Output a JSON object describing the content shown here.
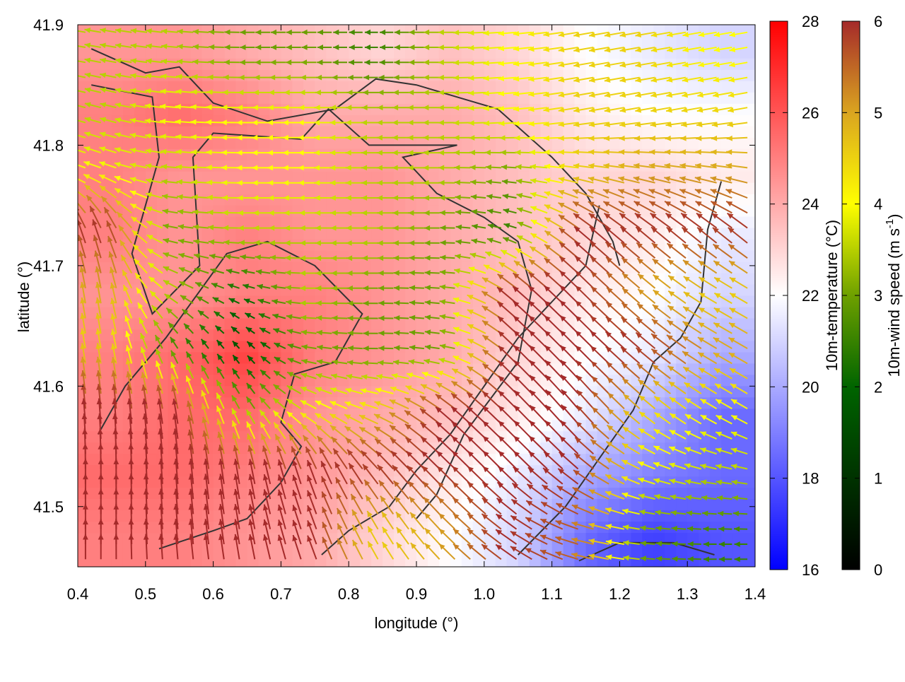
{
  "chart_data": {
    "type": "heatmap",
    "overlay": "vector",
    "xlabel": "longitude (°)",
    "ylabel": "latitude (°)",
    "xlim": [
      0.4,
      1.4
    ],
    "ylim": [
      41.45,
      41.9
    ],
    "xticks": [
      "0.4",
      "0.5",
      "0.6",
      "0.7",
      "0.8",
      "0.9",
      "1.0",
      "1.1",
      "1.2",
      "1.3",
      "1.4"
    ],
    "yticks": [
      "41.5",
      "41.6",
      "41.7",
      "41.8",
      "41.9"
    ],
    "grid_lon": [
      0.45,
      0.55,
      0.65,
      0.75,
      0.85,
      0.95,
      1.05,
      1.15,
      1.25,
      1.35
    ],
    "grid_lat": [
      41.875,
      41.825,
      41.775,
      41.725,
      41.675,
      41.625,
      41.575,
      41.525,
      41.475
    ],
    "temperature": [
      [
        24.5,
        24.5,
        24,
        23.5,
        23,
        23.5,
        23,
        22,
        21.5,
        21
      ],
      [
        25,
        25.5,
        25,
        24,
        24,
        24,
        23.5,
        22.5,
        22,
        22
      ],
      [
        25,
        24.5,
        24.5,
        24.5,
        24.5,
        24,
        23.5,
        23,
        23,
        22.5
      ],
      [
        25,
        24.5,
        25,
        24.5,
        24.5,
        24,
        23.5,
        23,
        22.5,
        21.5
      ],
      [
        24.5,
        24.5,
        25,
        25,
        24.5,
        24,
        23.5,
        22.5,
        22,
        21
      ],
      [
        25,
        25.5,
        26.5,
        25,
        24.5,
        24,
        23,
        22,
        21.5,
        20
      ],
      [
        25,
        25.5,
        25.5,
        24.5,
        24,
        23.5,
        22.5,
        21.5,
        20,
        18.5
      ],
      [
        25.5,
        25.5,
        25,
        24.5,
        23.5,
        22.5,
        21.5,
        20,
        19,
        18.5
      ],
      [
        25,
        25,
        24.5,
        24,
        23,
        22,
        21,
        18.5,
        17.5,
        18
      ]
    ],
    "wind_speed": [
      [
        3.5,
        3.5,
        3,
        3,
        2.5,
        3.5,
        4,
        4.5,
        4.5,
        4
      ],
      [
        3.5,
        4,
        4,
        4,
        3.5,
        3.5,
        4,
        4.5,
        4.5,
        4.5
      ],
      [
        4,
        3.5,
        4,
        4,
        3.5,
        3.5,
        3,
        4.5,
        5,
        5
      ],
      [
        6,
        3,
        3.5,
        3.5,
        3.5,
        3,
        2.5,
        6,
        6,
        6
      ],
      [
        5,
        3.5,
        2,
        3.5,
        3,
        3,
        6,
        6,
        5,
        4.5
      ],
      [
        4.5,
        2.5,
        1.5,
        3,
        3,
        3,
        6,
        6,
        6,
        5
      ],
      [
        6,
        6,
        3,
        4,
        4.5,
        6,
        6,
        6,
        4.5,
        4
      ],
      [
        6,
        6,
        6,
        6,
        6,
        6,
        6,
        6,
        4,
        3.5
      ],
      [
        6,
        6,
        6,
        6,
        4.5,
        5,
        6,
        5.5,
        3,
        2.5
      ]
    ],
    "wind_direction_deg": [
      [
        170,
        175,
        180,
        180,
        180,
        180,
        185,
        190,
        190,
        190
      ],
      [
        165,
        175,
        180,
        180,
        180,
        180,
        185,
        190,
        190,
        190
      ],
      [
        160,
        175,
        180,
        180,
        180,
        180,
        175,
        170,
        170,
        170
      ],
      [
        110,
        170,
        180,
        180,
        180,
        180,
        160,
        140,
        140,
        140
      ],
      [
        100,
        150,
        160,
        180,
        180,
        175,
        140,
        135,
        140,
        150
      ],
      [
        100,
        120,
        130,
        170,
        180,
        170,
        135,
        135,
        140,
        150
      ],
      [
        95,
        100,
        120,
        150,
        160,
        140,
        135,
        130,
        140,
        150
      ],
      [
        90,
        95,
        100,
        110,
        130,
        135,
        135,
        140,
        160,
        170
      ],
      [
        90,
        95,
        100,
        110,
        120,
        135,
        145,
        165,
        175,
        180
      ]
    ],
    "contours": [
      [
        [
          0.42,
          41.88
        ],
        [
          0.5,
          41.86
        ],
        [
          0.55,
          41.865
        ],
        [
          0.6,
          41.835
        ],
        [
          0.68,
          41.82
        ],
        [
          0.78,
          41.83
        ],
        [
          0.84,
          41.855
        ],
        [
          0.9,
          41.85
        ],
        [
          0.96,
          41.84
        ],
        [
          1.02,
          41.83
        ],
        [
          1.1,
          41.79
        ],
        [
          1.15,
          41.76
        ],
        [
          1.19,
          41.72
        ],
        [
          1.2,
          41.7
        ]
      ],
      [
        [
          0.42,
          41.85
        ],
        [
          0.51,
          41.84
        ],
        [
          0.52,
          41.79
        ],
        [
          0.48,
          41.71
        ],
        [
          0.51,
          41.66
        ],
        [
          0.58,
          41.7
        ],
        [
          0.57,
          41.79
        ],
        [
          0.6,
          41.81
        ],
        [
          0.73,
          41.805
        ],
        [
          0.77,
          41.83
        ],
        [
          0.83,
          41.8
        ],
        [
          0.96,
          41.8
        ],
        [
          0.88,
          41.79
        ],
        [
          0.93,
          41.76
        ],
        [
          1.0,
          41.74
        ],
        [
          1.05,
          41.72
        ],
        [
          1.07,
          41.68
        ],
        [
          1.05,
          41.62
        ],
        [
          0.97,
          41.56
        ],
        [
          0.93,
          41.51
        ],
        [
          0.9,
          41.49
        ]
      ],
      [
        [
          0.43,
          41.56
        ],
        [
          0.47,
          41.6
        ],
        [
          0.53,
          41.64
        ],
        [
          0.62,
          41.71
        ],
        [
          0.68,
          41.72
        ],
        [
          0.75,
          41.7
        ],
        [
          0.82,
          41.66
        ],
        [
          0.78,
          41.62
        ],
        [
          0.72,
          41.61
        ],
        [
          0.7,
          41.57
        ],
        [
          0.73,
          41.55
        ],
        [
          0.7,
          41.52
        ],
        [
          0.65,
          41.49
        ],
        [
          0.6,
          41.48
        ],
        [
          0.52,
          41.465
        ]
      ],
      [
        [
          0.76,
          41.46
        ],
        [
          0.8,
          41.48
        ],
        [
          0.86,
          41.5
        ],
        [
          0.9,
          41.53
        ],
        [
          0.95,
          41.56
        ],
        [
          1.0,
          41.6
        ],
        [
          1.05,
          41.64
        ],
        [
          1.1,
          41.67
        ],
        [
          1.15,
          41.7
        ],
        [
          1.17,
          41.75
        ]
      ],
      [
        [
          1.35,
          41.77
        ],
        [
          1.33,
          41.73
        ],
        [
          1.32,
          41.67
        ],
        [
          1.29,
          41.64
        ],
        [
          1.25,
          41.62
        ],
        [
          1.22,
          41.58
        ],
        [
          1.17,
          41.54
        ],
        [
          1.12,
          41.5
        ],
        [
          1.05,
          41.46
        ]
      ],
      [
        [
          1.14,
          41.455
        ],
        [
          1.2,
          41.47
        ],
        [
          1.28,
          41.47
        ],
        [
          1.34,
          41.46
        ]
      ]
    ],
    "colorbars": [
      {
        "label": "10m-temperature (°C)",
        "range": [
          16,
          28
        ],
        "ticks": [
          "16",
          "18",
          "20",
          "22",
          "24",
          "26",
          "28"
        ],
        "colors": [
          "#0000ff",
          "#ffffff",
          "#ff0000"
        ]
      },
      {
        "label_main": "10m-wind speed (m s",
        "label_sup": "-1",
        "label_end": ")",
        "range": [
          0,
          6
        ],
        "ticks": [
          "0",
          "1",
          "2",
          "3",
          "4",
          "5",
          "6"
        ],
        "colors": [
          "#000000",
          "#006400",
          "#6ea000",
          "#ffff00",
          "#daa520",
          "#a52a2a"
        ]
      }
    ]
  }
}
